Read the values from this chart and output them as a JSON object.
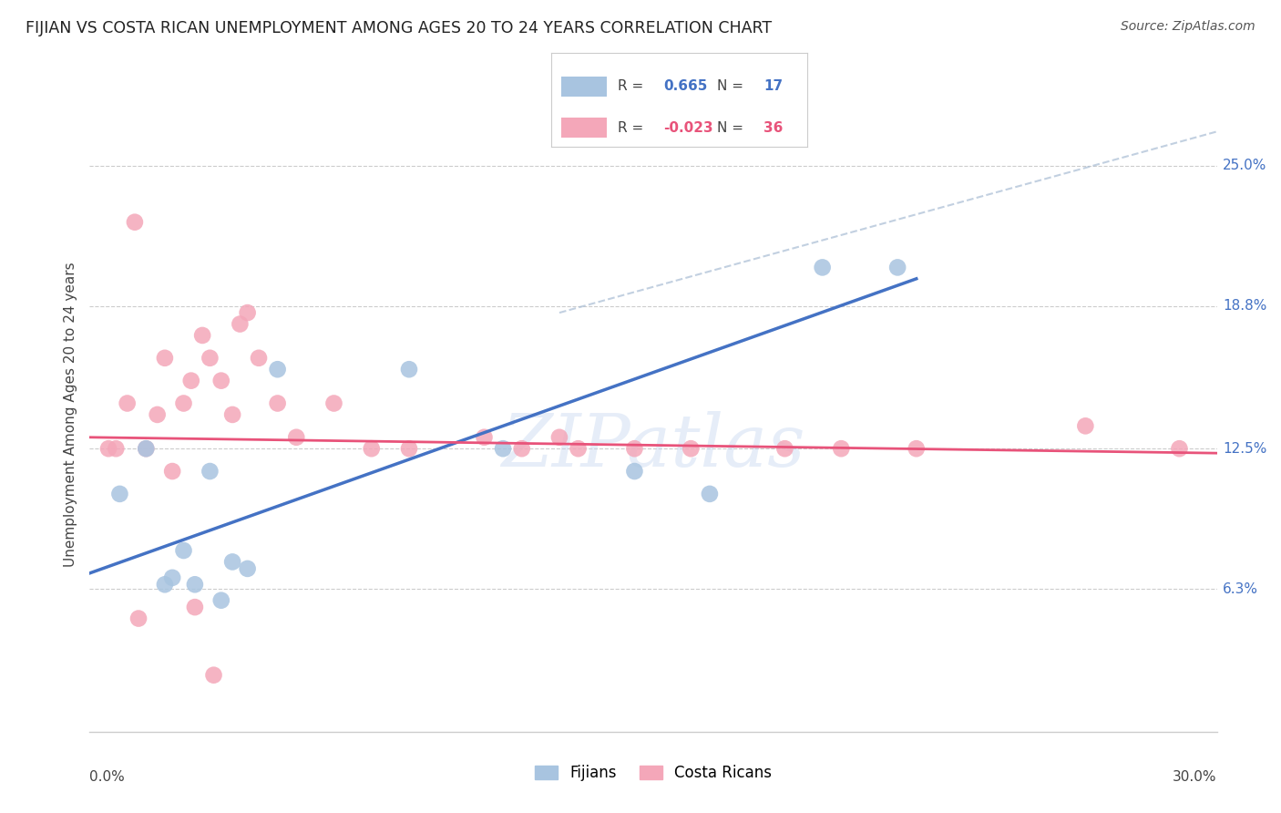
{
  "title": "FIJIAN VS COSTA RICAN UNEMPLOYMENT AMONG AGES 20 TO 24 YEARS CORRELATION CHART",
  "source": "Source: ZipAtlas.com",
  "ylabel": "Unemployment Among Ages 20 to 24 years",
  "ytick_values": [
    6.3,
    12.5,
    18.8,
    25.0
  ],
  "ytick_labels": [
    "6.3%",
    "12.5%",
    "18.8%",
    "25.0%"
  ],
  "xlim": [
    0.0,
    30.0
  ],
  "ylim": [
    0.0,
    28.0
  ],
  "fijian_color": "#a8c4e0",
  "costarican_color": "#f4a7b9",
  "fijian_line_color": "#4472c4",
  "costarican_line_color": "#e8537a",
  "dashed_line_color": "#a8bcd4",
  "R_fijian": "0.665",
  "N_fijian": "17",
  "R_costarican": "-0.023",
  "N_costarican": "36",
  "fijian_R_color": "#4472c4",
  "costarican_R_color": "#e8537a",
  "fijians_x": [
    0.8,
    1.5,
    2.0,
    2.5,
    3.2,
    3.8,
    4.2,
    5.0,
    8.5,
    11.0,
    14.5,
    16.5,
    19.5,
    21.5,
    2.2,
    2.8,
    3.5
  ],
  "fijians_y": [
    10.5,
    12.5,
    6.5,
    8.0,
    11.5,
    7.5,
    7.2,
    16.0,
    16.0,
    12.5,
    11.5,
    10.5,
    20.5,
    20.5,
    6.8,
    6.5,
    5.8
  ],
  "costarican_x": [
    0.5,
    0.7,
    1.0,
    1.2,
    1.5,
    1.8,
    2.0,
    2.2,
    2.5,
    2.7,
    3.0,
    3.2,
    3.5,
    3.8,
    4.0,
    4.2,
    4.5,
    5.0,
    5.5,
    6.5,
    7.5,
    8.5,
    10.5,
    11.5,
    12.5,
    13.0,
    14.5,
    16.0,
    18.5,
    20.0,
    22.0,
    26.5,
    29.0,
    1.3,
    2.8,
    3.3
  ],
  "costarican_y": [
    12.5,
    12.5,
    14.5,
    22.5,
    12.5,
    14.0,
    16.5,
    11.5,
    14.5,
    15.5,
    17.5,
    16.5,
    15.5,
    14.0,
    18.0,
    18.5,
    16.5,
    14.5,
    13.0,
    14.5,
    12.5,
    12.5,
    13.0,
    12.5,
    13.0,
    12.5,
    12.5,
    12.5,
    12.5,
    12.5,
    12.5,
    13.5,
    12.5,
    5.0,
    5.5,
    2.5
  ],
  "blue_line_x": [
    0.0,
    22.0
  ],
  "blue_line_y": [
    7.0,
    20.0
  ],
  "pink_line_x": [
    0.0,
    30.0
  ],
  "pink_line_y": [
    13.0,
    12.3
  ],
  "dashed_line_x": [
    12.5,
    30.0
  ],
  "dashed_line_y": [
    18.5,
    26.5
  ],
  "watermark": "ZIPatlas",
  "background_color": "#ffffff",
  "grid_color": "#cccccc",
  "right_tick_color": "#4472c4"
}
